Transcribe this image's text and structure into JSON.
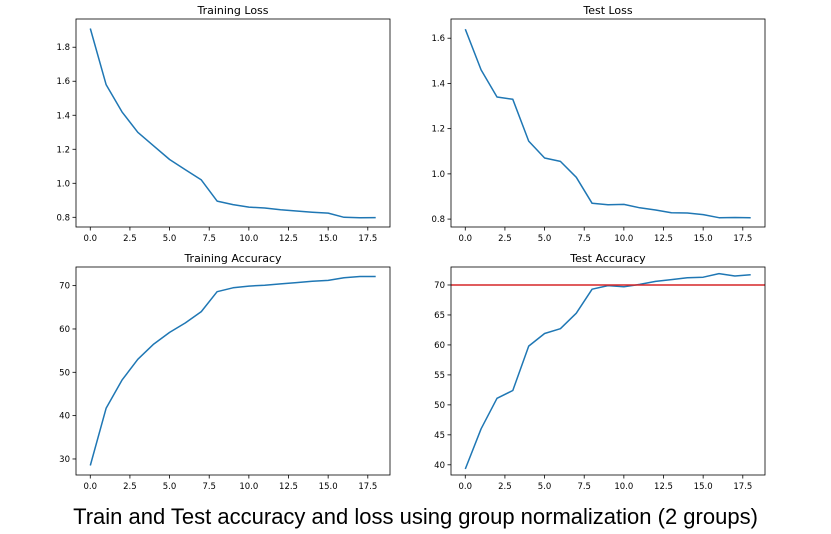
{
  "caption": "Train and Test accuracy and loss using group normalization (2 groups)",
  "colors": {
    "series": "#1f77b4",
    "reference_line": "#d62728",
    "axes": "#000000"
  },
  "chart_data": [
    {
      "type": "line",
      "title": "Training Loss",
      "xlabel": "",
      "ylabel": "",
      "xlim": [
        -0.9,
        18.9
      ],
      "ylim": [
        0.743,
        1.966
      ],
      "xticks": [
        0,
        2.5,
        5,
        7.5,
        10,
        12.5,
        15,
        17.5
      ],
      "xtick_labels": [
        "0.0",
        "2.5",
        "5.0",
        "7.5",
        "10.0",
        "12.5",
        "15.0",
        "17.5"
      ],
      "yticks": [
        0.8,
        1.0,
        1.2,
        1.4,
        1.6,
        1.8
      ],
      "ytick_labels": [
        "0.8",
        "1.0",
        "1.2",
        "1.4",
        "1.6",
        "1.8"
      ],
      "grid": false,
      "series": [
        {
          "x": [
            0,
            1,
            2,
            3,
            4,
            5,
            6,
            7,
            8,
            9,
            10,
            11,
            12,
            13,
            14,
            15,
            16,
            17,
            18
          ],
          "values": [
            1.91,
            1.58,
            1.42,
            1.3,
            1.22,
            1.14,
            1.08,
            1.02,
            0.895,
            0.875,
            0.86,
            0.855,
            0.845,
            0.837,
            0.83,
            0.825,
            0.8,
            0.797,
            0.798
          ]
        }
      ]
    },
    {
      "type": "line",
      "title": "Test Loss",
      "xlabel": "",
      "ylabel": "",
      "xlim": [
        -0.9,
        18.9
      ],
      "ylim": [
        0.765,
        1.685
      ],
      "xticks": [
        0,
        2.5,
        5,
        7.5,
        10,
        12.5,
        15,
        17.5
      ],
      "xtick_labels": [
        "0.0",
        "2.5",
        "5.0",
        "7.5",
        "10.0",
        "12.5",
        "15.0",
        "17.5"
      ],
      "yticks": [
        0.8,
        1.0,
        1.2,
        1.4,
        1.6
      ],
      "ytick_labels": [
        "0.8",
        "1.0",
        "1.2",
        "1.4",
        "1.6"
      ],
      "grid": false,
      "series": [
        {
          "x": [
            0,
            1,
            2,
            3,
            4,
            5,
            6,
            7,
            8,
            9,
            10,
            11,
            12,
            13,
            14,
            15,
            16,
            17,
            18
          ],
          "values": [
            1.64,
            1.46,
            1.34,
            1.33,
            1.145,
            1.07,
            1.055,
            0.985,
            0.87,
            0.863,
            0.865,
            0.85,
            0.84,
            0.828,
            0.827,
            0.82,
            0.806,
            0.807,
            0.806
          ]
        }
      ]
    },
    {
      "type": "line",
      "title": "Training Accuracy",
      "xlabel": "",
      "ylabel": "",
      "xlim": [
        -0.9,
        18.9
      ],
      "ylim": [
        26.3,
        74.3
      ],
      "xticks": [
        0,
        2.5,
        5,
        7.5,
        10,
        12.5,
        15,
        17.5
      ],
      "xtick_labels": [
        "0.0",
        "2.5",
        "5.0",
        "7.5",
        "10.0",
        "12.5",
        "15.0",
        "17.5"
      ],
      "yticks": [
        30,
        40,
        50,
        60,
        70
      ],
      "ytick_labels": [
        "30",
        "40",
        "50",
        "60",
        "70"
      ],
      "grid": false,
      "series": [
        {
          "x": [
            0,
            1,
            2,
            3,
            4,
            5,
            6,
            7,
            8,
            9,
            10,
            11,
            12,
            13,
            14,
            15,
            16,
            17,
            18
          ],
          "values": [
            28.5,
            41.7,
            48.2,
            53.0,
            56.5,
            59.2,
            61.4,
            64.0,
            68.6,
            69.5,
            69.9,
            70.1,
            70.4,
            70.7,
            71.0,
            71.2,
            71.8,
            72.1,
            72.1
          ]
        }
      ]
    },
    {
      "type": "line",
      "title": "Test Accuracy",
      "xlabel": "",
      "ylabel": "",
      "xlim": [
        -0.9,
        18.9
      ],
      "ylim": [
        38.3,
        73.0
      ],
      "xticks": [
        0,
        2.5,
        5,
        7.5,
        10,
        12.5,
        15,
        17.5
      ],
      "xtick_labels": [
        "0.0",
        "2.5",
        "5.0",
        "7.5",
        "10.0",
        "12.5",
        "15.0",
        "17.5"
      ],
      "yticks": [
        40,
        45,
        50,
        55,
        60,
        65,
        70
      ],
      "ytick_labels": [
        "40",
        "45",
        "50",
        "55",
        "60",
        "65",
        "70"
      ],
      "grid": false,
      "hline": 70,
      "series": [
        {
          "x": [
            0,
            1,
            2,
            3,
            4,
            5,
            6,
            7,
            8,
            9,
            10,
            11,
            12,
            13,
            14,
            15,
            16,
            17,
            18
          ],
          "values": [
            39.3,
            46.0,
            51.1,
            52.4,
            59.8,
            61.9,
            62.7,
            65.3,
            69.3,
            69.9,
            69.7,
            70.1,
            70.6,
            70.9,
            71.2,
            71.3,
            71.9,
            71.5,
            71.7
          ]
        }
      ]
    }
  ]
}
